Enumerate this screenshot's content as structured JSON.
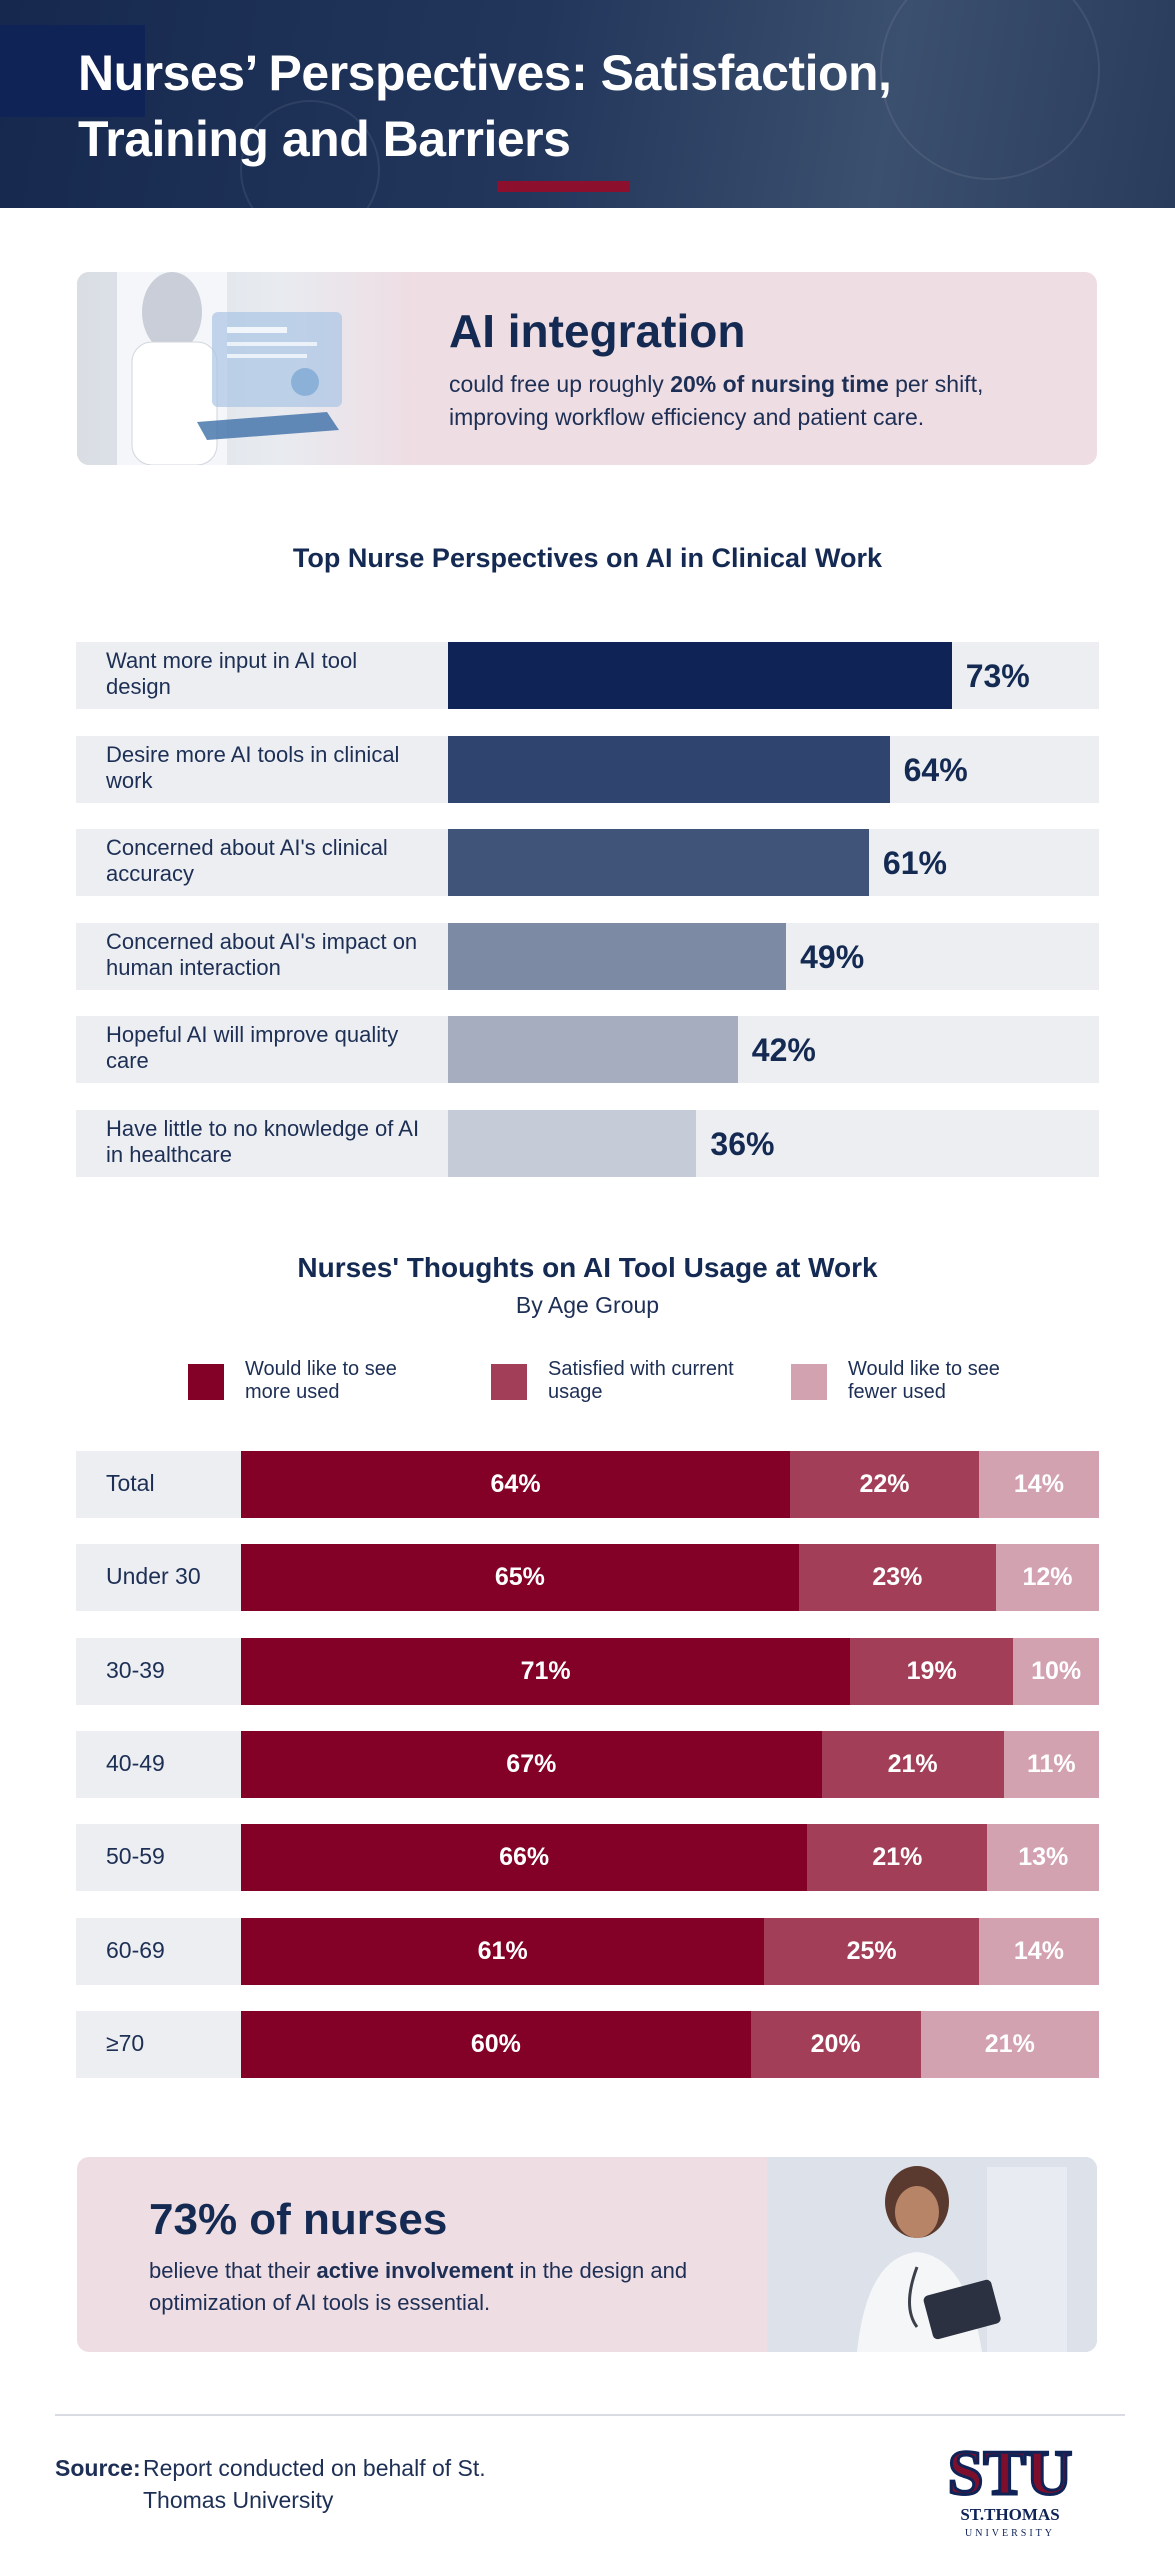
{
  "header": {
    "title": "Nurses’ Perspectives: Satisfaction, Training and Barriers"
  },
  "intro_card": {
    "heading": "AI integration",
    "text_before": "could free up roughly ",
    "text_bold": "20% of nursing time",
    "text_after": " per shift, improving workflow efficiency and patient care."
  },
  "perspectives": {
    "title": "Top Nurse Perspectives on AI in Clinical Work"
  },
  "usage": {
    "title": "Nurses' Thoughts on AI Tool Usage at Work",
    "subtitle": "By Age Group"
  },
  "chart_data": [
    {
      "type": "bar",
      "orientation": "horizontal",
      "title": "Top Nurse Perspectives on AI in Clinical Work",
      "categories": [
        "Want more input in AI tool design",
        "Desire more AI tools in clinical work",
        "Concerned about AI's clinical accuracy",
        "Concerned about AI's impact on human interaction",
        "Hopeful AI will improve quality care",
        "Have little to no knowledge of AI in healthcare"
      ],
      "values": [
        73,
        64,
        61,
        49,
        42,
        36
      ],
      "value_labels": [
        "73%",
        "64%",
        "61%",
        "49%",
        "42%",
        "36%"
      ],
      "colors": [
        "#0f2357",
        "#2f4570",
        "#3f5478",
        "#7d8aa3",
        "#a5adbf",
        "#c5cbd7"
      ],
      "xlim": [
        0,
        100
      ]
    },
    {
      "type": "bar",
      "orientation": "horizontal",
      "stacked": true,
      "title": "Nurses' Thoughts on AI Tool Usage at Work",
      "subtitle": "By Age Group",
      "categories": [
        "Total",
        "Under 30",
        "30-39",
        "40-49",
        "50-59",
        "60-69",
        "≥70"
      ],
      "series": [
        {
          "name": "Would like to see more used",
          "color": "#830027",
          "values": [
            64,
            65,
            71,
            67,
            66,
            61,
            60
          ],
          "labels": [
            "64%",
            "65%",
            "71%",
            "67%",
            "66%",
            "61%",
            "60%"
          ]
        },
        {
          "name": "Satisfied with current usage",
          "color": "#a33e58",
          "values": [
            22,
            23,
            19,
            21,
            21,
            25,
            20
          ],
          "labels": [
            "22%",
            "23%",
            "19%",
            "21%",
            "21%",
            "25%",
            "20%"
          ]
        },
        {
          "name": "Would like to see fewer used",
          "color": "#d3a2b0",
          "values": [
            14,
            12,
            10,
            11,
            13,
            14,
            21
          ],
          "labels": [
            "14%",
            "12%",
            "10%",
            "11%",
            "13%",
            "14%",
            "21%"
          ]
        }
      ],
      "legend": "top"
    }
  ],
  "bottom_card": {
    "heading": "73% of nurses",
    "text_before": "believe that their ",
    "text_bold": "active involvement",
    "text_after": " in the design and optimization of AI tools is essential."
  },
  "footer": {
    "source_label": "Source:",
    "source_text": "Report conducted on behalf of St. Thomas University",
    "logo_mark": "STU",
    "logo_line1": "ST.THOMAS",
    "logo_line2": "UNIVERSITY"
  },
  "colors": {
    "navy": "#142a52",
    "maroon": "#8c0f2e",
    "pink_bg": "#eedde3",
    "row_bg": "#eceef1"
  }
}
